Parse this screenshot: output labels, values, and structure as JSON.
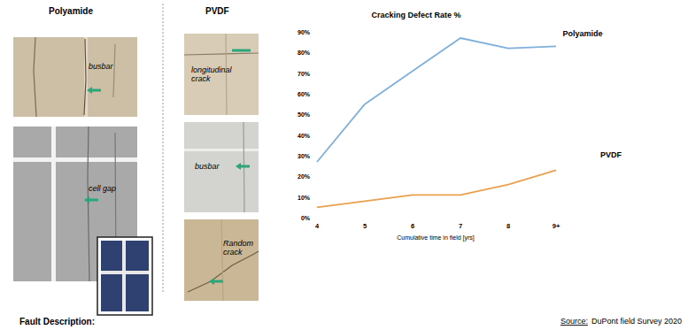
{
  "chart_data": {
    "type": "line",
    "title": "Cracking Defect Rate %",
    "x_label": "Cumulative time in field [yrs]",
    "categories": [
      "4",
      "5",
      "6",
      "7",
      "8",
      "9+"
    ],
    "series": [
      {
        "name": "Polyamide",
        "color": "#7fb0dc",
        "values": [
          27,
          55,
          71,
          87,
          82,
          83
        ]
      },
      {
        "name": "PVDF",
        "color": "#e9a04f",
        "values": [
          5,
          8,
          11,
          11,
          16,
          23
        ]
      }
    ],
    "ylim": [
      0,
      90
    ],
    "yticks": [
      {
        "value": 0,
        "label": "0%"
      },
      {
        "value": 10,
        "label": "10%"
      },
      {
        "value": 20,
        "label": "20%"
      },
      {
        "value": 30,
        "label": "30%"
      },
      {
        "value": 40,
        "label": "40%"
      },
      {
        "value": 50,
        "label": "50%"
      },
      {
        "value": 60,
        "label": "60%"
      },
      {
        "value": 70,
        "label": "70%"
      },
      {
        "value": 80,
        "label": "80%"
      },
      {
        "value": 90,
        "label": "90%"
      }
    ],
    "grid": false
  },
  "panels": [
    {
      "title": "Polyamide",
      "photos": [
        {
          "label": "busbar"
        },
        {
          "label": "cell gap"
        }
      ]
    },
    {
      "title": "PVDF",
      "photos": [
        {
          "label": "longitudinal crack"
        },
        {
          "label": "busbar"
        },
        {
          "label": "Random crack"
        }
      ]
    }
  ],
  "footer": {
    "fault_description": "Fault Description:",
    "source_label": "Source:",
    "source": "DuPont field Survey 2020"
  }
}
